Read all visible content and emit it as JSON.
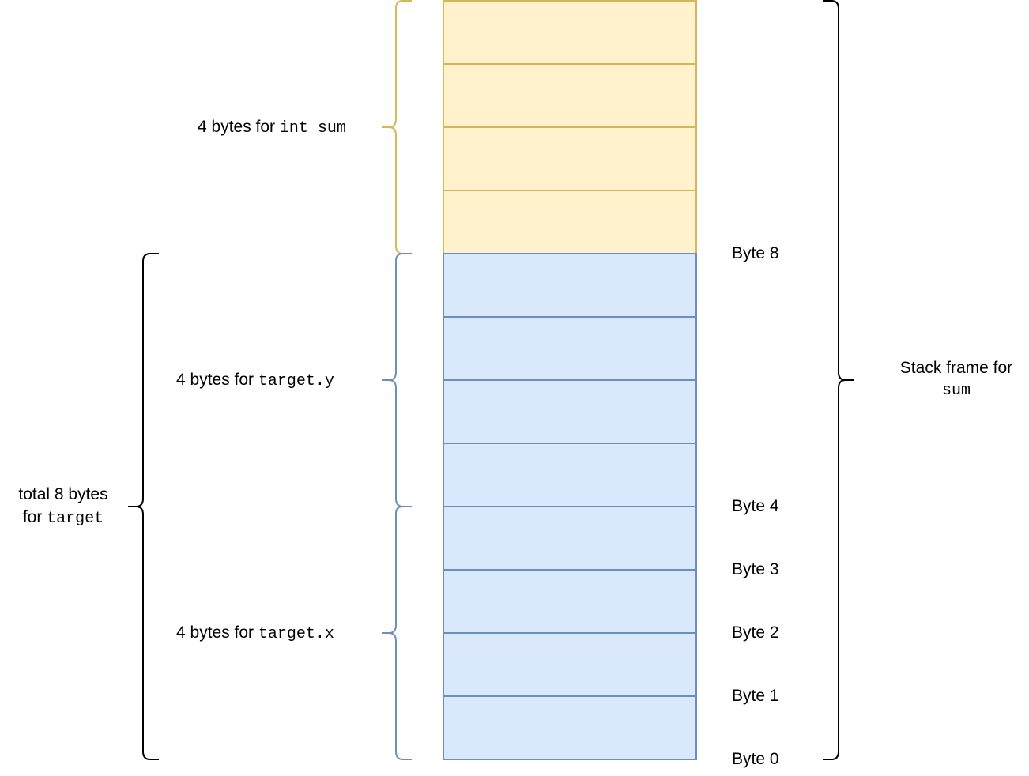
{
  "colors": {
    "yellow_fill": "#fff2cc",
    "yellow_stroke": "#d6b656",
    "blue_fill": "#dae8fc",
    "blue_stroke": "#6c8ebf",
    "black": "#000000"
  },
  "cells": {
    "sum_cell_count": 4,
    "target_cell_count": 8
  },
  "labels": {
    "sum": {
      "prefix": "4 bytes for ",
      "code": "int sum"
    },
    "target_y": {
      "prefix": "4 bytes for ",
      "code": "target.y"
    },
    "target_x": {
      "prefix": "4 bytes for ",
      "code": "target.x"
    },
    "target_total": {
      "line1": "total 8 bytes",
      "prefix": "for ",
      "code": "target"
    },
    "stack_frame": {
      "line1": "Stack frame for",
      "code": "sum"
    }
  },
  "byte_labels": [
    "Byte 8",
    "Byte 4",
    "Byte 3",
    "Byte 2",
    "Byte 1",
    "Byte 0"
  ]
}
